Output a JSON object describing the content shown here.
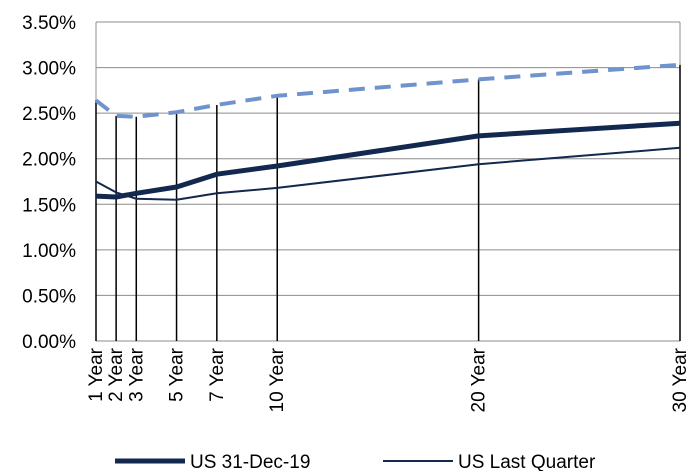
{
  "chart_data": {
    "type": "line",
    "title": "",
    "xlabel": "",
    "ylabel": "",
    "x_scale": "linear-years",
    "categories": [
      "1 Year",
      "2 Year",
      "3 Year",
      "5 Year",
      "7 Year",
      "10 Year",
      "20 Year",
      "30 Year"
    ],
    "x": [
      1,
      2,
      3,
      5,
      7,
      10,
      20,
      30
    ],
    "ylim": [
      0,
      3.5
    ],
    "yticks": [
      "0.00%",
      "0.50%",
      "1.00%",
      "1.50%",
      "2.00%",
      "2.50%",
      "3.00%",
      "3.50%"
    ],
    "grid": "horizontal",
    "legend_position": "bottom",
    "series": [
      {
        "name": "US 31-Dec-19",
        "style": "thick solid",
        "color": "#13284f",
        "values": [
          1.59,
          1.58,
          1.62,
          1.69,
          1.83,
          1.92,
          2.25,
          2.39
        ]
      },
      {
        "name": "US Last Quarter",
        "style": "thin solid",
        "color": "#13284f",
        "values": [
          1.75,
          1.63,
          1.56,
          1.55,
          1.62,
          1.68,
          1.94,
          2.12
        ]
      },
      {
        "name": "",
        "style": "dashed",
        "color": "#6f93cc",
        "values": [
          2.64,
          2.47,
          2.46,
          2.51,
          2.59,
          2.69,
          2.87,
          3.03
        ]
      }
    ]
  }
}
